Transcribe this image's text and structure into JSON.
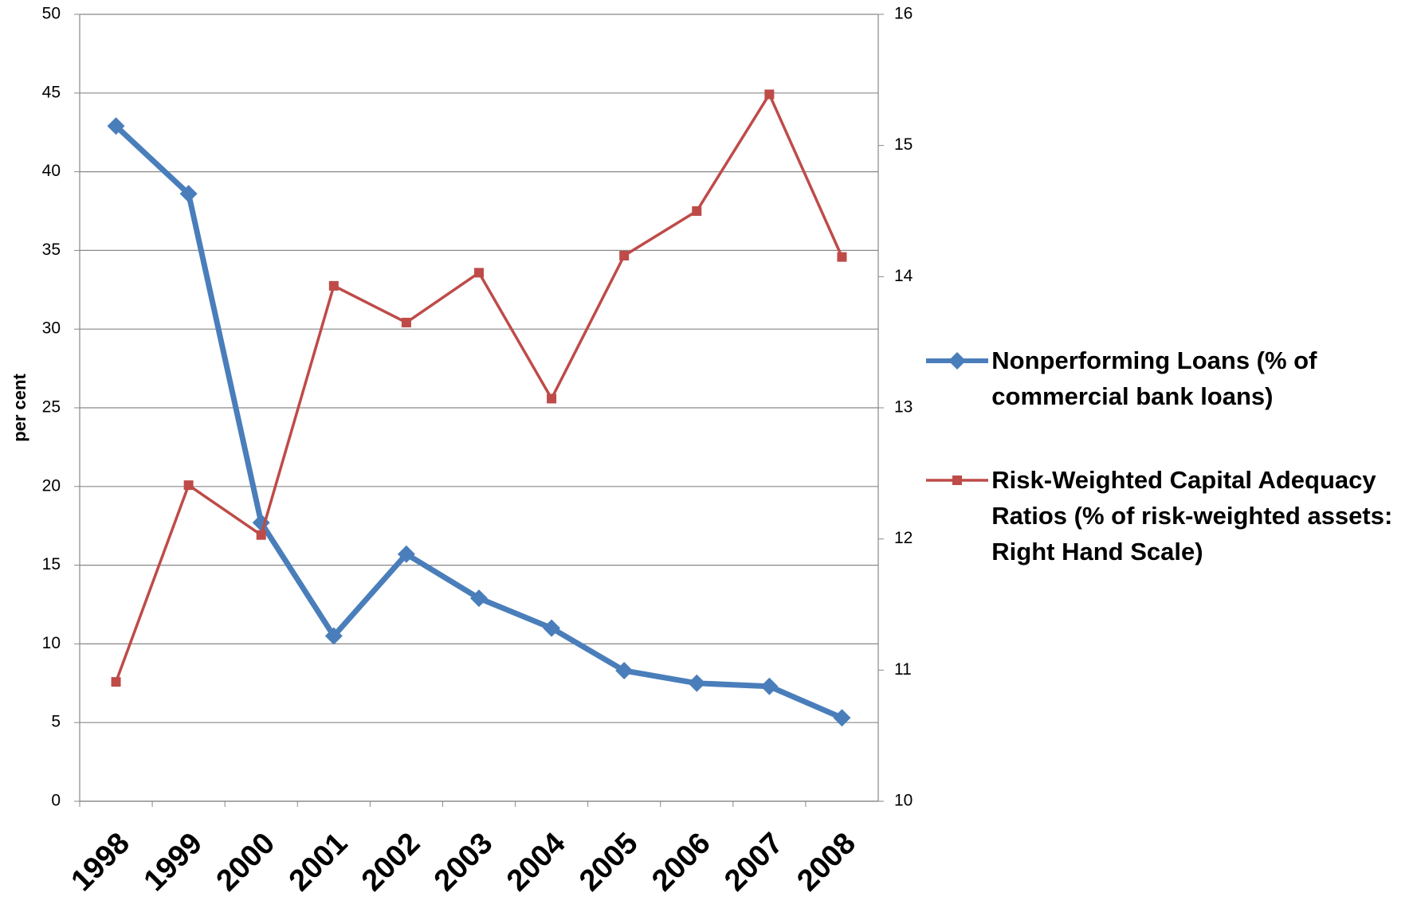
{
  "chart_data": {
    "type": "line",
    "y_label": "per cent",
    "categories": [
      "1998",
      "1999",
      "2000",
      "2001",
      "2002",
      "2003",
      "2004",
      "2005",
      "2006",
      "2007",
      "2008"
    ],
    "series": [
      {
        "name": "Nonperforming Loans (% of commercial bank loans)",
        "color": "#4a7ebb",
        "marker": "diamond",
        "values": [
          42.9,
          38.6,
          17.7,
          10.5,
          15.7,
          12.9,
          11.0,
          8.3,
          7.5,
          7.3,
          5.3
        ]
      },
      {
        "name": "Risk-Weighted Capital Adequacy Ratios (% of risk-weighted assets: Right Hand Scale)",
        "color": "#be4b48",
        "marker": "square",
        "axis": "y2",
        "values": [
          10.91,
          12.41,
          12.03,
          13.93,
          13.65,
          14.03,
          13.07,
          14.16,
          14.5,
          15.39,
          14.15
        ]
      }
    ],
    "ylim": [
      0,
      50
    ],
    "yticks": [
      0,
      5,
      10,
      15,
      20,
      25,
      30,
      35,
      40,
      45,
      50
    ],
    "y2lim": [
      10,
      16
    ],
    "y2ticks": [
      10,
      11,
      12,
      13,
      14,
      15,
      16
    ],
    "grid": true
  }
}
